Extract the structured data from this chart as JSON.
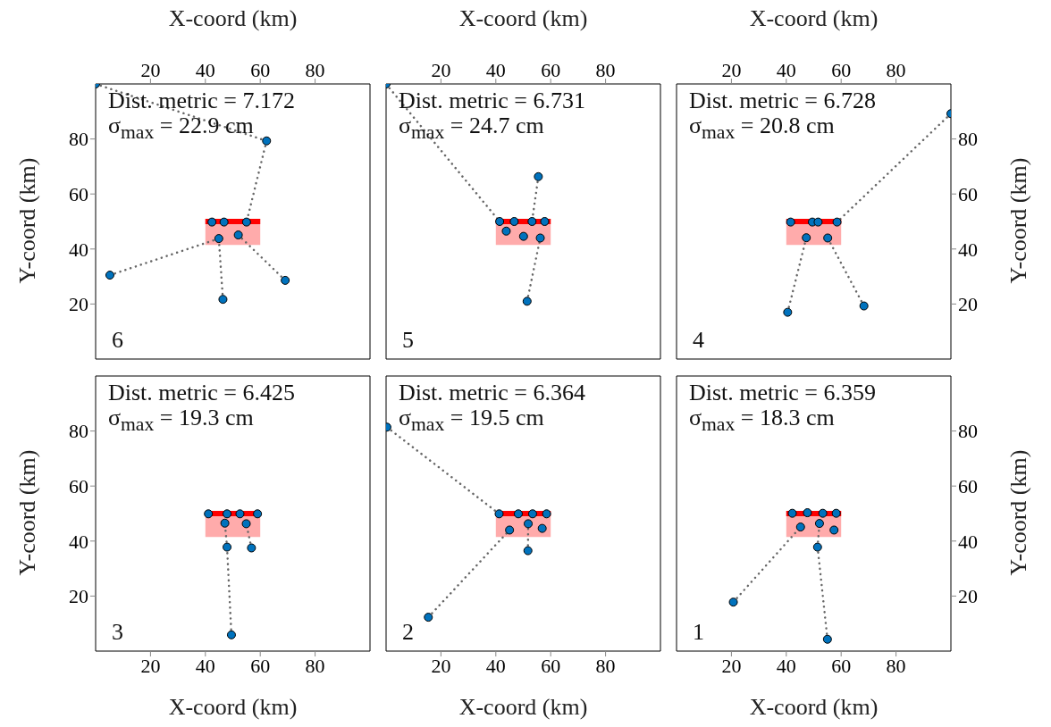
{
  "chart_data": [
    {
      "type": "scatter",
      "xlabel": "X-coord (km)",
      "ylabel": "Y-coord (km)",
      "xlim": [
        0,
        100
      ],
      "xticks": [
        20,
        40,
        60,
        80
      ],
      "ylim": [
        0,
        100
      ],
      "yticks": [
        20,
        40,
        60,
        80
      ],
      "annotations": [
        "Dist. metric = 7.172",
        "σ$_{max}$ = 22.9 cm",
        "6"
      ],
      "series": [
        {
          "type": "line",
          "color": "#ff0000",
          "line_style": "solid",
          "marker": "none",
          "x": [
            40,
            60
          ],
          "values": [
            50,
            50
          ],
          "lower": [
            41.5,
            41.5
          ],
          "upper": [
            51,
            51
          ]
        },
        {
          "type": "line",
          "color": "#666666",
          "line_style": "dotted",
          "marker": "none",
          "x": [
            0,
            62.3
          ],
          "values": [
            100,
            79.3
          ]
        },
        {
          "type": "line",
          "color": "#666666",
          "line_style": "dotted",
          "marker": "none",
          "x": [
            62.3,
            55
          ],
          "values": [
            79.3,
            49.8
          ]
        },
        {
          "type": "line",
          "color": "#666666",
          "line_style": "dotted",
          "marker": "none",
          "x": [
            5.2,
            44.9
          ],
          "values": [
            30.5,
            43.8
          ]
        },
        {
          "type": "line",
          "color": "#666666",
          "line_style": "dotted",
          "marker": "none",
          "x": [
            46.4,
            44.9
          ],
          "values": [
            21.7,
            43.8
          ]
        },
        {
          "type": "line",
          "color": "#666666",
          "line_style": "dotted",
          "marker": "none",
          "x": [
            69.1,
            52
          ],
          "values": [
            28.6,
            45.1
          ]
        },
        {
          "type": "scatter",
          "color": "#0072bd",
          "marker": "circle",
          "x": [
            0,
            62.3,
            42.4,
            46.8,
            55,
            44.9,
            52,
            5.2,
            69.1,
            46.4
          ],
          "values": [
            100,
            79.3,
            49.8,
            49.8,
            49.8,
            43.8,
            45.1,
            30.5,
            28.6,
            21.7
          ]
        }
      ]
    },
    {
      "type": "scatter",
      "xlabel": "X-coord (km)",
      "xlim": [
        0,
        100
      ],
      "xticks": [
        20,
        40,
        60,
        80
      ],
      "ylim": [
        0,
        100
      ],
      "yticks": [
        20,
        40,
        60,
        80
      ],
      "tick_labels": "x",
      "annotations": [
        "Dist. metric = 6.731",
        "σ$_{max}$ = 24.7 cm",
        "5"
      ],
      "series": [
        {
          "type": "line",
          "color": "#ff0000",
          "line_style": "solid",
          "marker": "none",
          "x": [
            40,
            60
          ],
          "values": [
            50,
            50
          ],
          "lower": [
            41.5,
            41.5
          ],
          "upper": [
            51,
            51
          ]
        },
        {
          "type": "line",
          "color": "#666666",
          "line_style": "dotted",
          "marker": "none",
          "x": [
            0,
            41.4
          ],
          "values": [
            100,
            50
          ]
        },
        {
          "type": "line",
          "color": "#666666",
          "line_style": "dotted",
          "marker": "none",
          "x": [
            55.5,
            53.2
          ],
          "values": [
            66.3,
            50
          ]
        },
        {
          "type": "line",
          "color": "#666666",
          "line_style": "dotted",
          "marker": "none",
          "x": [
            51.4,
            56.2
          ],
          "values": [
            21,
            44
          ]
        },
        {
          "type": "scatter",
          "color": "#0072bd",
          "marker": "circle",
          "x": [
            0,
            55.5,
            41.4,
            46.7,
            53.2,
            57.8,
            43.8,
            50.1,
            56.2,
            51.4
          ],
          "values": [
            100,
            66.3,
            50,
            50,
            50,
            50,
            46.5,
            44.6,
            44,
            21
          ]
        }
      ]
    },
    {
      "type": "scatter",
      "xlabel": "X-coord (km)",
      "ylabel": "Y-coord (km)",
      "xlim": [
        0,
        100
      ],
      "xticks": [
        20,
        40,
        60,
        80
      ],
      "ylim": [
        0,
        100
      ],
      "yticks": [
        20,
        40,
        60,
        80
      ],
      "annotations": [
        "Dist. metric = 6.728",
        "σ$_{max}$ = 20.8 cm",
        "4"
      ],
      "series": [
        {
          "type": "line",
          "color": "#ff0000",
          "line_style": "solid",
          "marker": "none",
          "x": [
            40,
            60
          ],
          "values": [
            50,
            50
          ],
          "lower": [
            41.5,
            41.5
          ],
          "upper": [
            51,
            51
          ]
        },
        {
          "type": "line",
          "color": "#666666",
          "line_style": "dotted",
          "marker": "none",
          "x": [
            100,
            58.5
          ],
          "values": [
            89.2,
            49.8
          ]
        },
        {
          "type": "line",
          "color": "#666666",
          "line_style": "dotted",
          "marker": "none",
          "x": [
            40.5,
            47.3
          ],
          "values": [
            17,
            44.1
          ]
        },
        {
          "type": "line",
          "color": "#666666",
          "line_style": "dotted",
          "marker": "none",
          "x": [
            68.3,
            55.1
          ],
          "values": [
            19.3,
            44
          ]
        },
        {
          "type": "scatter",
          "color": "#0072bd",
          "marker": "circle",
          "x": [
            100,
            41.6,
            49.5,
            51.6,
            58.5,
            47.3,
            55.1,
            40.5,
            68.3
          ],
          "values": [
            89.2,
            49.8,
            49.8,
            49.8,
            49.8,
            44.1,
            44,
            17,
            19.3
          ]
        }
      ]
    },
    {
      "type": "scatter",
      "xlabel": "X-coord (km)",
      "ylabel": "Y-coord (km)",
      "xlim": [
        0,
        100
      ],
      "xticks": [
        20,
        40,
        60,
        80
      ],
      "ylim": [
        0,
        100
      ],
      "yticks": [
        20,
        40,
        60,
        80
      ],
      "annotations": [
        "Dist. metric = 6.425",
        "σ$_{max}$ = 19.3 cm",
        "3"
      ],
      "series": [
        {
          "type": "line",
          "color": "#ff0000",
          "line_style": "solid",
          "marker": "none",
          "x": [
            40,
            60
          ],
          "values": [
            50,
            50
          ],
          "lower": [
            41.5,
            41.5
          ],
          "upper": [
            51,
            51
          ]
        },
        {
          "type": "line",
          "color": "#666666",
          "line_style": "dotted",
          "marker": "none",
          "x": [
            49.5,
            47.9
          ],
          "values": [
            5.9,
            37.8
          ]
        },
        {
          "type": "line",
          "color": "#666666",
          "line_style": "dotted",
          "marker": "none",
          "x": [
            47.9,
            47.1
          ],
          "values": [
            37.8,
            46.5
          ]
        },
        {
          "type": "line",
          "color": "#666666",
          "line_style": "dotted",
          "marker": "none",
          "x": [
            56.8,
            54.9
          ],
          "values": [
            37.5,
            46.3
          ]
        },
        {
          "type": "scatter",
          "color": "#0072bd",
          "marker": "circle",
          "x": [
            41.1,
            47.9,
            52.6,
            59,
            47.1,
            54.9,
            47.9,
            56.8,
            49.5
          ],
          "values": [
            49.9,
            49.9,
            49.9,
            49.9,
            46.5,
            46.3,
            37.8,
            37.5,
            5.9
          ]
        }
      ]
    },
    {
      "type": "scatter",
      "xlabel": "X-coord (km)",
      "xlim": [
        0,
        100
      ],
      "xticks": [
        20,
        40,
        60,
        80
      ],
      "ylim": [
        0,
        100
      ],
      "yticks": [
        20,
        40,
        60,
        80
      ],
      "tick_labels": "x",
      "annotations": [
        "Dist. metric = 6.364",
        "σ$_{max}$ = 19.5 cm",
        "2"
      ],
      "series": [
        {
          "type": "line",
          "color": "#ff0000",
          "line_style": "solid",
          "marker": "none",
          "x": [
            40,
            60
          ],
          "values": [
            50,
            50
          ],
          "lower": [
            41.5,
            41.5
          ],
          "upper": [
            51,
            51
          ]
        },
        {
          "type": "line",
          "color": "#666666",
          "line_style": "dotted",
          "marker": "none",
          "x": [
            0.3,
            41.2
          ],
          "values": [
            81.4,
            49.9
          ]
        },
        {
          "type": "line",
          "color": "#666666",
          "line_style": "dotted",
          "marker": "none",
          "x": [
            15.4,
            45
          ],
          "values": [
            12.3,
            44
          ]
        },
        {
          "type": "line",
          "color": "#666666",
          "line_style": "dotted",
          "marker": "none",
          "x": [
            51.7,
            51.8
          ],
          "values": [
            36.5,
            46.3
          ]
        },
        {
          "type": "scatter",
          "color": "#0072bd",
          "marker": "circle",
          "x": [
            0.3,
            41.2,
            48.2,
            53.4,
            58.5,
            51.8,
            45,
            56.9,
            51.7,
            15.4
          ],
          "values": [
            81.4,
            49.9,
            49.9,
            49.9,
            49.9,
            46.3,
            44,
            44.6,
            36.5,
            12.3
          ]
        }
      ]
    },
    {
      "type": "scatter",
      "xlabel": "X-coord (km)",
      "ylabel": "Y-coord (km)",
      "xlim": [
        0,
        100
      ],
      "xticks": [
        20,
        40,
        60,
        80
      ],
      "ylim": [
        0,
        100
      ],
      "yticks": [
        20,
        40,
        60,
        80
      ],
      "annotations": [
        "Dist. metric = 6.359",
        "σ$_{max}$ = 18.3 cm",
        "1"
      ],
      "series": [
        {
          "type": "line",
          "color": "#ff0000",
          "line_style": "solid",
          "marker": "none",
          "x": [
            40,
            60
          ],
          "values": [
            50,
            50
          ],
          "lower": [
            41.5,
            41.5
          ],
          "upper": [
            51,
            51
          ]
        },
        {
          "type": "line",
          "color": "#666666",
          "line_style": "dotted",
          "marker": "none",
          "x": [
            20.7,
            45.2
          ],
          "values": [
            17.8,
            45.1
          ]
        },
        {
          "type": "line",
          "color": "#666666",
          "line_style": "dotted",
          "marker": "none",
          "x": [
            55,
            51.4
          ],
          "values": [
            4.3,
            37.8
          ]
        },
        {
          "type": "line",
          "color": "#666666",
          "line_style": "dotted",
          "marker": "none",
          "x": [
            51.4,
            52.1
          ],
          "values": [
            37.8,
            46.4
          ]
        },
        {
          "type": "scatter",
          "color": "#0072bd",
          "marker": "circle",
          "x": [
            42.2,
            47.7,
            53.3,
            58.2,
            45.2,
            52.1,
            57.4,
            51.4,
            20.7,
            55
          ],
          "values": [
            50.1,
            50.3,
            50.1,
            50.1,
            45.1,
            46.4,
            44,
            37.8,
            17.8,
            4.3
          ]
        }
      ]
    }
  ]
}
